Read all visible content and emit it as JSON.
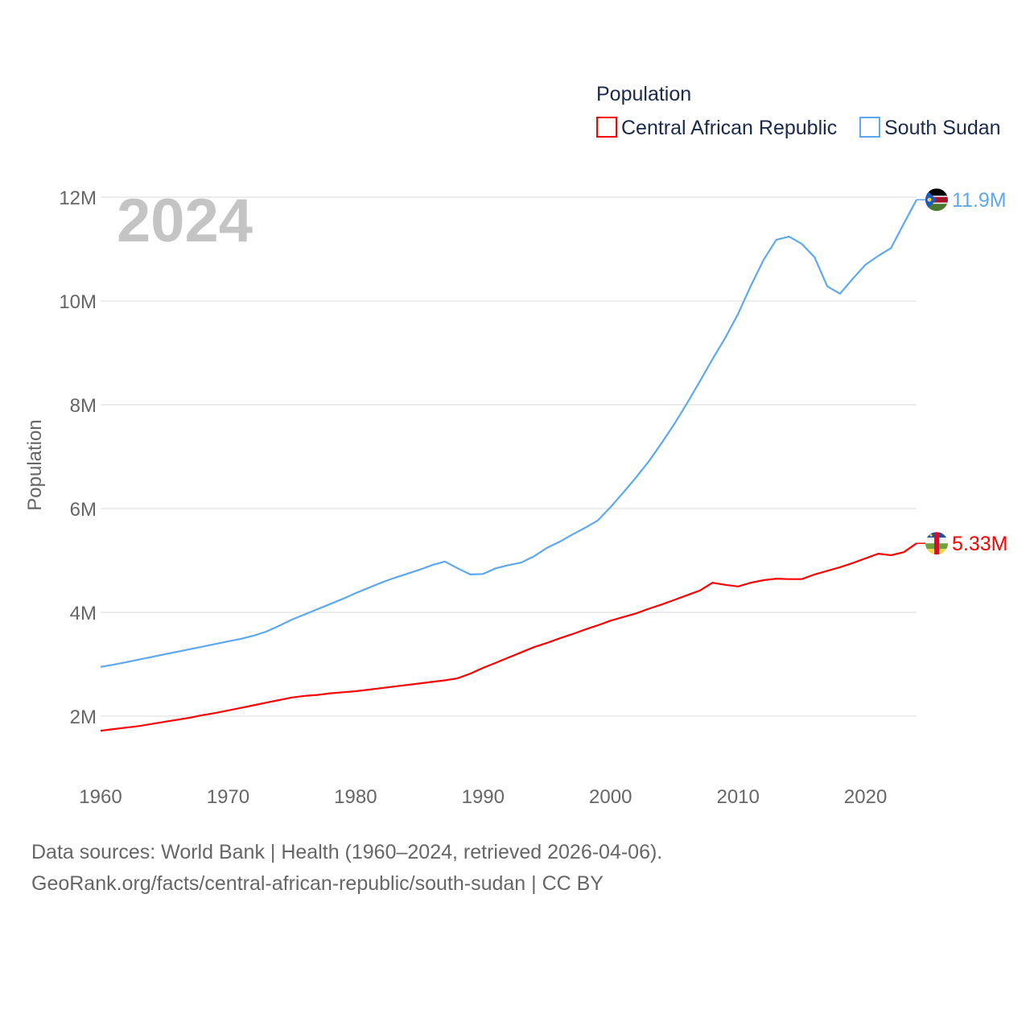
{
  "chart_data": {
    "type": "line",
    "title": "Population",
    "xlabel": "",
    "ylabel": "Population",
    "year_label": "2024",
    "xlim": [
      1960,
      2024
    ],
    "ylim": [
      0,
      12000000
    ],
    "x_ticks": [
      "1960",
      "1970",
      "1980",
      "1990",
      "2000",
      "2010",
      "2020"
    ],
    "y_ticks": [
      {
        "v": 2,
        "label": "2M"
      },
      {
        "v": 4,
        "label": "4M"
      },
      {
        "v": 6,
        "label": "6M"
      },
      {
        "v": 8,
        "label": "8M"
      },
      {
        "v": 10,
        "label": "10M"
      },
      {
        "v": 12,
        "label": "12M"
      }
    ],
    "grid": true,
    "legend_position": "top-right",
    "unit": "millions",
    "x_start": 1960,
    "series": [
      {
        "name": "Central African Republic",
        "color": "#ff0000",
        "end_label": "5.33M",
        "flag": "central-african-republic",
        "values": [
          1.72,
          1.75,
          1.78,
          1.81,
          1.85,
          1.89,
          1.93,
          1.97,
          2.02,
          2.06,
          2.11,
          2.16,
          2.21,
          2.26,
          2.31,
          2.36,
          2.39,
          2.41,
          2.44,
          2.46,
          2.48,
          2.51,
          2.54,
          2.57,
          2.6,
          2.63,
          2.66,
          2.69,
          2.73,
          2.82,
          2.93,
          3.03,
          3.13,
          3.23,
          3.33,
          3.41,
          3.5,
          3.58,
          3.67,
          3.75,
          3.84,
          3.91,
          3.98,
          4.07,
          4.15,
          4.24,
          4.33,
          4.42,
          4.57,
          4.53,
          4.5,
          4.57,
          4.62,
          4.65,
          4.64,
          4.64,
          4.73,
          4.8,
          4.87,
          4.95,
          5.04,
          5.13,
          5.1,
          5.16,
          5.33
        ]
      },
      {
        "name": "South Sudan",
        "color": "#5ea8ef",
        "end_label": "11.9M",
        "flag": "south-sudan",
        "values": [
          2.95,
          2.99,
          3.04,
          3.09,
          3.14,
          3.19,
          3.24,
          3.29,
          3.34,
          3.39,
          3.44,
          3.49,
          3.55,
          3.63,
          3.74,
          3.86,
          3.96,
          4.06,
          4.16,
          4.26,
          4.37,
          4.47,
          4.57,
          4.66,
          4.74,
          4.82,
          4.91,
          4.98,
          4.85,
          4.73,
          4.74,
          4.85,
          4.91,
          4.96,
          5.08,
          5.24,
          5.36,
          5.5,
          5.63,
          5.77,
          6.03,
          6.31,
          6.6,
          6.91,
          7.26,
          7.63,
          8.03,
          8.45,
          8.88,
          9.29,
          9.75,
          10.29,
          10.79,
          11.18,
          11.24,
          11.1,
          10.84,
          10.28,
          10.14,
          10.43,
          10.7,
          10.87,
          11.02,
          11.49,
          11.95
        ]
      }
    ]
  },
  "footer": {
    "line1": "Data sources: World Bank | Health (1960–2024, retrieved 2026-04-06).",
    "line2": "GeoRank.org/facts/central-african-republic/south-sudan | CC BY"
  }
}
